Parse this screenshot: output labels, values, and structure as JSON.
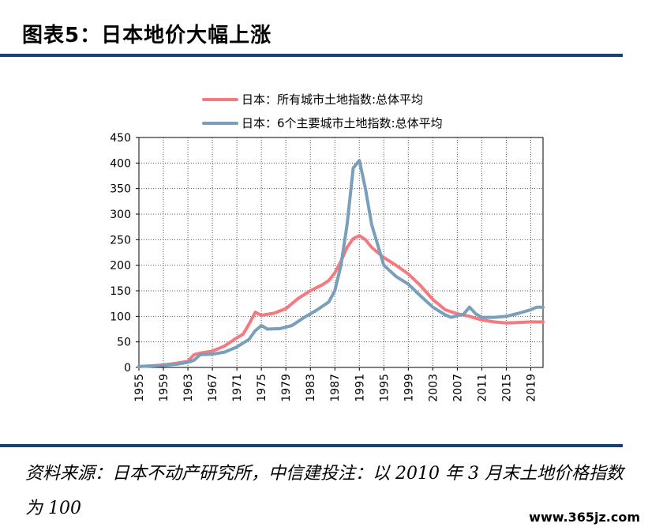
{
  "header": {
    "title": "图表5：日本地价大幅上涨"
  },
  "footer": {
    "source": "资料来源：日本不动产研究所，中信建投注：以 2010 年 3 月末土地价格指数为 100",
    "watermark": "www.365jz.com"
  },
  "colors": {
    "rule": "#1c3f72",
    "series_all": "#f47a80",
    "series_six": "#7a9fbb"
  },
  "chart_data": {
    "type": "line",
    "ylim": [
      0,
      450
    ],
    "yticks": [
      0,
      50,
      100,
      150,
      200,
      250,
      300,
      350,
      400,
      450
    ],
    "xlim": [
      1955,
      2021
    ],
    "xticks": [
      "1955",
      "1959",
      "1963",
      "1967",
      "1971",
      "1975",
      "1979",
      "1983",
      "1987",
      "1991",
      "1995",
      "1999",
      "2003",
      "2007",
      "2011",
      "2015",
      "2019"
    ],
    "grid": true,
    "legend_position": "top",
    "series": [
      {
        "name": "日本：所有城市土地指数:总体平均",
        "color": "#f47a80",
        "points": [
          [
            1955,
            2
          ],
          [
            1957,
            3
          ],
          [
            1959,
            5
          ],
          [
            1961,
            8
          ],
          [
            1963,
            12
          ],
          [
            1964,
            25
          ],
          [
            1965,
            28
          ],
          [
            1967,
            32
          ],
          [
            1969,
            42
          ],
          [
            1971,
            58
          ],
          [
            1972,
            65
          ],
          [
            1973,
            85
          ],
          [
            1974,
            108
          ],
          [
            1975,
            102
          ],
          [
            1977,
            106
          ],
          [
            1979,
            115
          ],
          [
            1981,
            135
          ],
          [
            1983,
            150
          ],
          [
            1985,
            162
          ],
          [
            1986,
            170
          ],
          [
            1987,
            185
          ],
          [
            1988,
            208
          ],
          [
            1989,
            235
          ],
          [
            1990,
            252
          ],
          [
            1991,
            258
          ],
          [
            1992,
            250
          ],
          [
            1993,
            235
          ],
          [
            1995,
            215
          ],
          [
            1997,
            200
          ],
          [
            1999,
            183
          ],
          [
            2001,
            160
          ],
          [
            2003,
            133
          ],
          [
            2005,
            113
          ],
          [
            2007,
            105
          ],
          [
            2009,
            100
          ],
          [
            2011,
            93
          ],
          [
            2013,
            89
          ],
          [
            2015,
            87
          ],
          [
            2017,
            88
          ],
          [
            2019,
            89
          ],
          [
            2021,
            89
          ]
        ]
      },
      {
        "name": "日本：6个主要城市土地指数:总体平均",
        "color": "#7a9fbb",
        "points": [
          [
            1955,
            2
          ],
          [
            1957,
            3
          ],
          [
            1959,
            4
          ],
          [
            1961,
            6
          ],
          [
            1963,
            10
          ],
          [
            1964,
            14
          ],
          [
            1965,
            25
          ],
          [
            1967,
            26
          ],
          [
            1969,
            30
          ],
          [
            1971,
            40
          ],
          [
            1973,
            55
          ],
          [
            1974,
            72
          ],
          [
            1975,
            82
          ],
          [
            1976,
            75
          ],
          [
            1978,
            76
          ],
          [
            1980,
            82
          ],
          [
            1982,
            98
          ],
          [
            1984,
            112
          ],
          [
            1986,
            128
          ],
          [
            1987,
            150
          ],
          [
            1988,
            200
          ],
          [
            1989,
            280
          ],
          [
            1990,
            390
          ],
          [
            1991,
            405
          ],
          [
            1992,
            350
          ],
          [
            1993,
            280
          ],
          [
            1995,
            200
          ],
          [
            1997,
            178
          ],
          [
            1999,
            163
          ],
          [
            2001,
            140
          ],
          [
            2003,
            118
          ],
          [
            2005,
            103
          ],
          [
            2006,
            98
          ],
          [
            2008,
            104
          ],
          [
            2009,
            118
          ],
          [
            2010,
            105
          ],
          [
            2011,
            98
          ],
          [
            2013,
            98
          ],
          [
            2015,
            100
          ],
          [
            2017,
            106
          ],
          [
            2019,
            113
          ],
          [
            2020,
            118
          ],
          [
            2021,
            118
          ]
        ]
      }
    ]
  }
}
